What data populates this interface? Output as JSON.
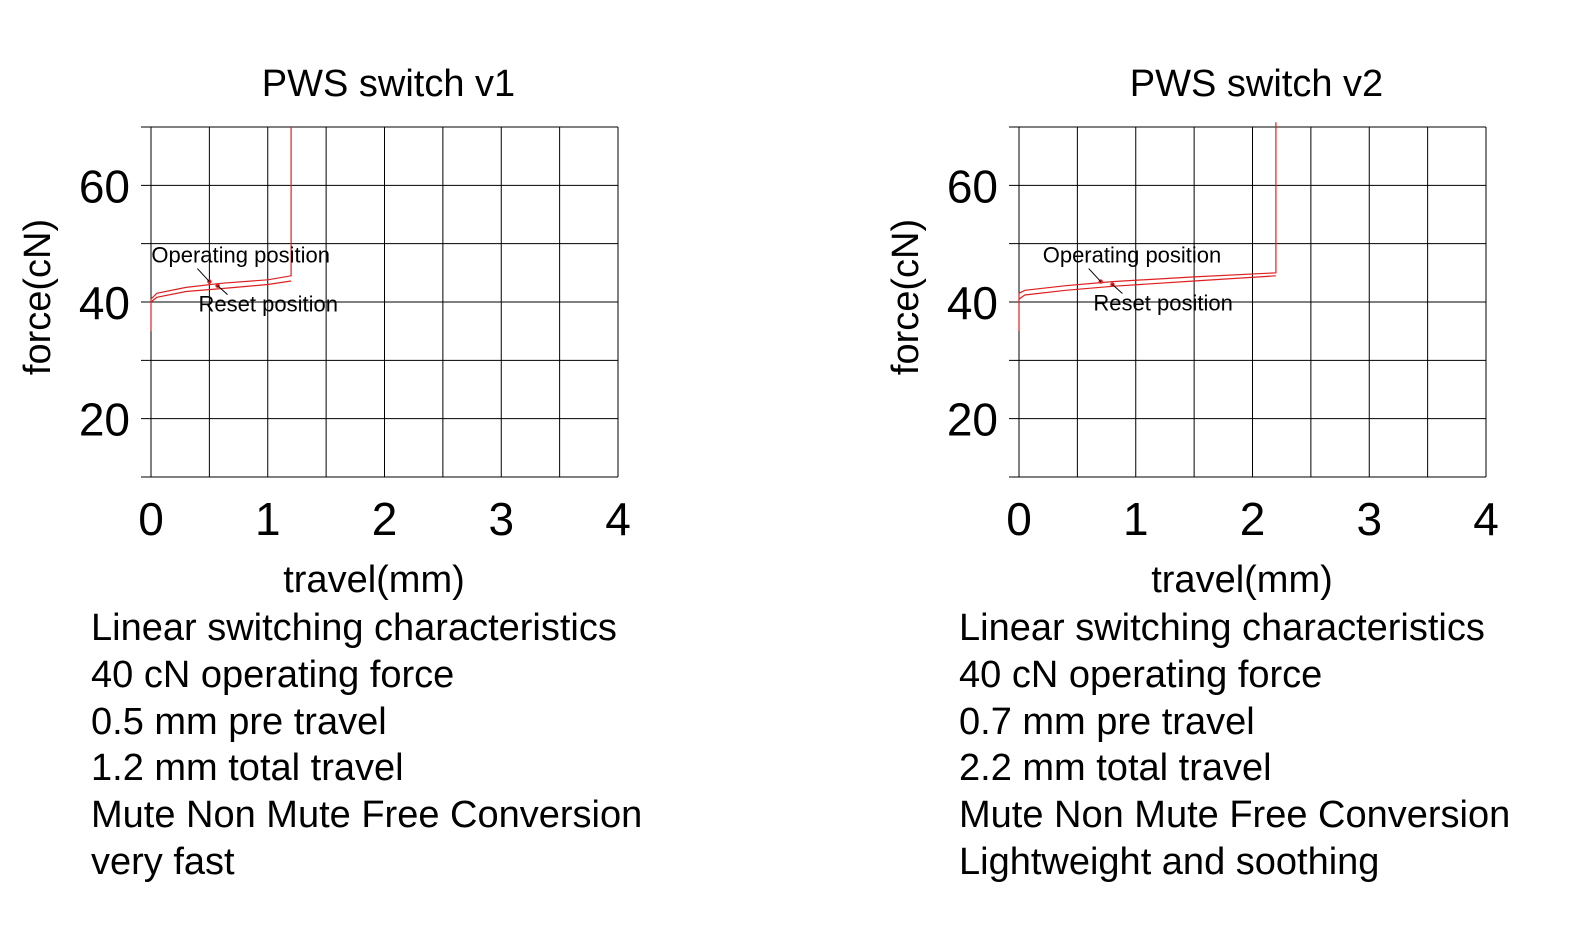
{
  "chart_data": [
    {
      "type": "line",
      "title": "PWS switch v1",
      "xlabel": "travel(mm)",
      "ylabel": "force(cN)",
      "xlim": [
        0,
        4
      ],
      "ylim": [
        10,
        70
      ],
      "xticks": [
        "0",
        "1",
        "2",
        "3",
        "4"
      ],
      "yticks": [
        "20",
        "40",
        "60"
      ],
      "grid": true,
      "line_color": "#e02020",
      "series": [
        {
          "x": [
            0,
            0,
            0.05,
            0.3,
            0.6,
            1.0,
            1.2,
            1.2
          ],
          "y": [
            35,
            40.5,
            41.5,
            42.5,
            43.2,
            43.8,
            44.5,
            70
          ]
        },
        {
          "x": [
            0,
            0.05,
            0.3,
            0.6,
            1.0,
            1.2
          ],
          "y": [
            40,
            40.8,
            41.8,
            42.3,
            43.0,
            43.6
          ]
        }
      ],
      "annotations": [
        {
          "text": "Operating position",
          "x": 0.5,
          "y": 43.5
        },
        {
          "text": "Reset position",
          "x": 0.57,
          "y": 42.8
        }
      ],
      "description": [
        "Linear switching characteristics",
        "40 cN operating force",
        "0.5 mm pre travel",
        "1.2 mm total travel",
        "Mute Non Mute Free Conversion",
        "very fast"
      ]
    },
    {
      "type": "line",
      "title": "PWS switch v2",
      "xlabel": "travel(mm)",
      "ylabel": "force(cN)",
      "xlim": [
        0,
        4
      ],
      "ylim": [
        10,
        70
      ],
      "xticks": [
        "0",
        "1",
        "2",
        "3",
        "4"
      ],
      "yticks": [
        "20",
        "40",
        "60"
      ],
      "grid": true,
      "line_color": "#e02020",
      "series": [
        {
          "x": [
            0,
            0,
            0.05,
            0.4,
            0.8,
            1.5,
            2.2,
            2.2
          ],
          "y": [
            35,
            41.5,
            42.0,
            42.8,
            43.5,
            44.3,
            45.0,
            70.8
          ]
        },
        {
          "x": [
            0,
            0.05,
            0.4,
            0.8,
            1.5,
            2.2
          ],
          "y": [
            40.5,
            41.2,
            42.0,
            42.7,
            43.6,
            44.5
          ]
        }
      ],
      "annotations": [
        {
          "text": "Operating position",
          "x": 0.7,
          "y": 43.5
        },
        {
          "text": "Reset position",
          "x": 0.8,
          "y": 43.0
        }
      ],
      "description": [
        "Linear switching characteristics",
        "40 cN operating force",
        "0.7 mm pre travel",
        "2.2 mm total travel",
        "Mute Non Mute Free Conversion",
        "Lightweight and soothing"
      ]
    }
  ]
}
